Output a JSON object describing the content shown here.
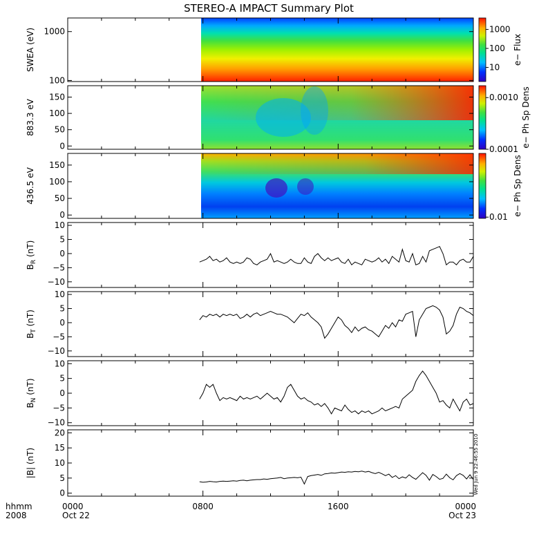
{
  "title": "STEREO-A IMPACT Summary Plot",
  "stamp": "Wed Jun  9 22:46:55 2010",
  "colors": {
    "trace": "#000000",
    "axis": "#000000",
    "background": "#ffffff"
  },
  "footer": {
    "left_top": "hhmm",
    "left_bottom": "2008"
  },
  "chart_data": [
    {
      "type": "heatmap",
      "ylabel": "SWEA (eV)",
      "yscale": "log",
      "ylim": [
        95,
        1900
      ],
      "yticks": [
        100,
        1000
      ],
      "ytick_labels": [
        "100",
        "1000"
      ],
      "colorbar": {
        "label": "e− Flux",
        "scale": "log",
        "range": [
          1.8,
          4000
        ],
        "ticks": [
          10,
          100,
          1000
        ],
        "tick_labels": [
          "10",
          "100",
          "1000"
        ]
      },
      "data_start": "0750"
    },
    {
      "type": "heatmap",
      "ylabel": "883.3 eV",
      "ylim": [
        -10,
        185
      ],
      "yticks": [
        0,
        50,
        100,
        150
      ],
      "ytick_labels": [
        "0",
        "50",
        "100",
        "150"
      ],
      "colorbar": {
        "label": "e− Ph Sp Dens",
        "scale": "log",
        "range": [
          0.0001,
          0.0017
        ],
        "ticks": [
          0.0001,
          0.001
        ],
        "tick_labels": [
          "0.0001",
          "0.0010"
        ]
      },
      "data_start": "0750"
    },
    {
      "type": "heatmap",
      "ylabel": "436.5 eV",
      "ylim": [
        -10,
        185
      ],
      "yticks": [
        0,
        50,
        100,
        150
      ],
      "ytick_labels": [
        "0",
        "50",
        "100",
        "150"
      ],
      "colorbar": {
        "label": "e− Ph Sp Dens",
        "scale": "log",
        "range": [
          0.0095,
          0.14
        ],
        "ticks": [
          0.01
        ],
        "tick_labels": [
          "0.01"
        ]
      },
      "data_start": "0750"
    },
    {
      "type": "line",
      "ylabel": "B",
      "ylabel_sub": "R",
      "ylabel_unit": " (nT)",
      "ylim": [
        -12,
        11
      ],
      "yticks": [
        -10,
        -5,
        0,
        5,
        10
      ],
      "ytick_labels": [
        "−10",
        "−5",
        "0",
        "5",
        "10"
      ],
      "x": [
        7.8,
        8.0,
        8.2,
        8.4,
        8.6,
        8.8,
        9.0,
        9.2,
        9.4,
        9.6,
        9.8,
        10.0,
        10.2,
        10.4,
        10.6,
        10.8,
        11.0,
        11.2,
        11.4,
        11.6,
        11.8,
        12.0,
        12.2,
        12.4,
        12.6,
        12.8,
        13.0,
        13.2,
        13.4,
        13.6,
        13.8,
        14.0,
        14.2,
        14.4,
        14.6,
        14.8,
        15.0,
        15.2,
        15.4,
        15.6,
        15.8,
        16.0,
        16.2,
        16.4,
        16.6,
        16.8,
        17.0,
        17.2,
        17.4,
        17.6,
        17.8,
        18.0,
        18.2,
        18.4,
        18.6,
        18.8,
        19.0,
        19.2,
        19.4,
        19.6,
        19.8,
        20.0,
        20.2,
        20.4,
        20.6,
        20.8,
        21.0,
        21.2,
        21.4,
        21.6,
        21.8,
        22.0,
        22.2,
        22.4,
        22.6,
        22.8,
        23.0,
        23.2,
        23.4,
        23.6,
        23.8,
        24.0
      ],
      "y": [
        -3,
        -2.5,
        -2,
        -1,
        -2.5,
        -2,
        -3,
        -2.5,
        -1.5,
        -3,
        -3.5,
        -3,
        -3.5,
        -3,
        -1.5,
        -2,
        -3.5,
        -4,
        -3,
        -2.5,
        -2,
        0,
        -3,
        -2.5,
        -3,
        -3.5,
        -3,
        -2,
        -3,
        -3.5,
        -3.5,
        -1.5,
        -3,
        -3.5,
        -1,
        0,
        -1.5,
        -2.5,
        -1.5,
        -2.5,
        -2,
        -1.5,
        -3,
        -3.5,
        -2,
        -4,
        -3,
        -3.5,
        -4,
        -2,
        -2.5,
        -3,
        -2.5,
        -1.5,
        -3,
        -2,
        -3.5,
        -1,
        -2,
        -3,
        1.5,
        -2.5,
        -3,
        0,
        -4,
        -3.5,
        -1,
        -3,
        1,
        1.5,
        2,
        2.5,
        0,
        -4,
        -3,
        -3,
        -4,
        -2.5,
        -2,
        -3,
        -3,
        -1
      ]
    },
    {
      "type": "line",
      "ylabel": "B",
      "ylabel_sub": "T",
      "ylabel_unit": " (nT)",
      "ylim": [
        -12,
        11
      ],
      "yticks": [
        -10,
        -5,
        0,
        5,
        10
      ],
      "ytick_labels": [
        "−10",
        "−5",
        "0",
        "5",
        "10"
      ],
      "x": [
        7.8,
        8.0,
        8.2,
        8.4,
        8.6,
        8.8,
        9.0,
        9.2,
        9.4,
        9.6,
        9.8,
        10.0,
        10.2,
        10.4,
        10.6,
        10.8,
        11.0,
        11.2,
        11.4,
        11.6,
        11.8,
        12.0,
        12.2,
        12.4,
        12.6,
        12.8,
        13.0,
        13.2,
        13.4,
        13.6,
        13.8,
        14.0,
        14.2,
        14.4,
        14.6,
        14.8,
        15.0,
        15.2,
        15.4,
        15.6,
        15.8,
        16.0,
        16.2,
        16.4,
        16.6,
        16.8,
        17.0,
        17.2,
        17.4,
        17.6,
        17.8,
        18.0,
        18.2,
        18.4,
        18.6,
        18.8,
        19.0,
        19.2,
        19.4,
        19.6,
        19.8,
        20.0,
        20.2,
        20.4,
        20.6,
        20.8,
        21.0,
        21.2,
        21.4,
        21.6,
        21.8,
        22.0,
        22.2,
        22.4,
        22.6,
        22.8,
        23.0,
        23.2,
        23.4,
        23.6,
        23.8,
        24.0
      ],
      "y": [
        1,
        2.5,
        2,
        3,
        2.5,
        3,
        2,
        3,
        2.5,
        3,
        2.5,
        3,
        1.5,
        2,
        3,
        2,
        3,
        3.5,
        2.5,
        3,
        3.5,
        4,
        3.5,
        3,
        3,
        2.5,
        2,
        1,
        0,
        1.5,
        3,
        2.5,
        3.5,
        2,
        1,
        0,
        -1.5,
        -5.5,
        -4,
        -2,
        0,
        2,
        1,
        -1,
        -2,
        -3.5,
        -1.5,
        -3,
        -2,
        -1.5,
        -2.5,
        -3,
        -4,
        -5,
        -3,
        -1,
        -2,
        0,
        -1.5,
        1,
        0.5,
        3,
        3.5,
        4,
        -5,
        1,
        3,
        5,
        5.5,
        6,
        5.5,
        4.5,
        2,
        -4,
        -3,
        -1,
        3,
        5.5,
        5,
        4,
        3.5,
        2.5
      ]
    },
    {
      "type": "line",
      "ylabel": "B",
      "ylabel_sub": "N",
      "ylabel_unit": " (nT)",
      "ylim": [
        -11,
        11
      ],
      "yticks": [
        -10,
        -5,
        0,
        5,
        10
      ],
      "ytick_labels": [
        "−10",
        "−5",
        "0",
        "5",
        "10"
      ],
      "x": [
        7.8,
        8.0,
        8.2,
        8.4,
        8.6,
        8.8,
        9.0,
        9.2,
        9.4,
        9.6,
        9.8,
        10.0,
        10.2,
        10.4,
        10.6,
        10.8,
        11.0,
        11.2,
        11.4,
        11.6,
        11.8,
        12.0,
        12.2,
        12.4,
        12.6,
        12.8,
        13.0,
        13.2,
        13.4,
        13.6,
        13.8,
        14.0,
        14.2,
        14.4,
        14.6,
        14.8,
        15.0,
        15.2,
        15.4,
        15.6,
        15.8,
        16.0,
        16.2,
        16.4,
        16.6,
        16.8,
        17.0,
        17.2,
        17.4,
        17.6,
        17.8,
        18.0,
        18.2,
        18.4,
        18.6,
        18.8,
        19.0,
        19.2,
        19.4,
        19.6,
        19.8,
        20.0,
        20.2,
        20.4,
        20.6,
        20.8,
        21.0,
        21.2,
        21.4,
        21.6,
        21.8,
        22.0,
        22.2,
        22.4,
        22.6,
        22.8,
        23.0,
        23.2,
        23.4,
        23.6,
        23.8,
        24.0
      ],
      "y": [
        -2,
        0,
        3,
        2,
        3,
        0,
        -2.5,
        -1.5,
        -2,
        -1.5,
        -2,
        -2.5,
        -1,
        -2,
        -1.5,
        -2,
        -1.5,
        -1,
        -2,
        -1,
        0,
        -1,
        -2,
        -1.5,
        -3,
        -1,
        2,
        3,
        1,
        -1,
        -2,
        -1.5,
        -2.5,
        -3,
        -4,
        -3.5,
        -4.5,
        -3.5,
        -5,
        -7,
        -5,
        -5.5,
        -6,
        -4,
        -5.5,
        -6.5,
        -6,
        -7,
        -6,
        -6.5,
        -6,
        -7,
        -6.5,
        -6,
        -5,
        -6,
        -5.5,
        -5,
        -4.5,
        -5,
        -2,
        -1,
        0,
        1,
        4,
        6,
        7.5,
        6,
        4,
        2,
        0,
        -3,
        -2.5,
        -4,
        -5,
        -2,
        -4,
        -6,
        -3,
        -2,
        -4,
        -3.5
      ]
    },
    {
      "type": "line",
      "ylabel": "|B|",
      "ylabel_sub": "",
      "ylabel_unit": " (nT)",
      "ylim": [
        -1,
        21
      ],
      "yticks": [
        0,
        5,
        10,
        15,
        20
      ],
      "ytick_labels": [
        "0",
        "5",
        "10",
        "15",
        "20"
      ],
      "x": [
        7.8,
        8.0,
        8.2,
        8.4,
        8.6,
        8.8,
        9.0,
        9.2,
        9.4,
        9.6,
        9.8,
        10.0,
        10.2,
        10.4,
        10.6,
        10.8,
        11.0,
        11.2,
        11.4,
        11.6,
        11.8,
        12.0,
        12.2,
        12.4,
        12.6,
        12.8,
        13.0,
        13.2,
        13.4,
        13.6,
        13.8,
        14.0,
        14.2,
        14.4,
        14.6,
        14.8,
        15.0,
        15.2,
        15.4,
        15.6,
        15.8,
        16.0,
        16.2,
        16.4,
        16.6,
        16.8,
        17.0,
        17.2,
        17.4,
        17.6,
        17.8,
        18.0,
        18.2,
        18.4,
        18.6,
        18.8,
        19.0,
        19.2,
        19.4,
        19.6,
        19.8,
        20.0,
        20.2,
        20.4,
        20.6,
        20.8,
        21.0,
        21.2,
        21.4,
        21.6,
        21.8,
        22.0,
        22.2,
        22.4,
        22.6,
        22.8,
        23.0,
        23.2,
        23.4,
        23.6,
        23.8,
        24.0
      ],
      "y": [
        3.8,
        3.6,
        3.7,
        3.9,
        3.8,
        3.7,
        3.9,
        4,
        3.9,
        4,
        4.1,
        4,
        4.2,
        4.3,
        4.1,
        4.3,
        4.4,
        4.5,
        4.5,
        4.7,
        4.6,
        4.8,
        4.9,
        5,
        5.2,
        4.8,
        5,
        5.1,
        5.2,
        5.1,
        5.3,
        3,
        5.5,
        5.8,
        6,
        6.2,
        5.9,
        6.4,
        6.5,
        6.7,
        6.6,
        6.8,
        7,
        6.9,
        7.1,
        7,
        7.2,
        7.1,
        7.3,
        7,
        7.2,
        6.8,
        6.5,
        6.9,
        6.4,
        5.8,
        6.3,
        5.2,
        5.8,
        4.8,
        5.4,
        5,
        6.1,
        5.2,
        4.6,
        5.7,
        6.8,
        5.9,
        4.3,
        6.2,
        5.5,
        4.6,
        4.9,
        6.3,
        5.1,
        4.4,
        5.8,
        6.5,
        5.9,
        4.7,
        6.1,
        4.5
      ]
    }
  ],
  "x_axis": {
    "range": [
      0,
      24
    ],
    "major_ticks": [
      0,
      8,
      16,
      24
    ],
    "minor_ticks": [
      2,
      4,
      6,
      10,
      12,
      14,
      18,
      20,
      22
    ],
    "tick_labels": [
      {
        "top": "0000",
        "bottom": "Oct 22"
      },
      {
        "top": "0800",
        "bottom": ""
      },
      {
        "top": "1600",
        "bottom": ""
      },
      {
        "top": "0000",
        "bottom": "Oct 23"
      }
    ]
  }
}
